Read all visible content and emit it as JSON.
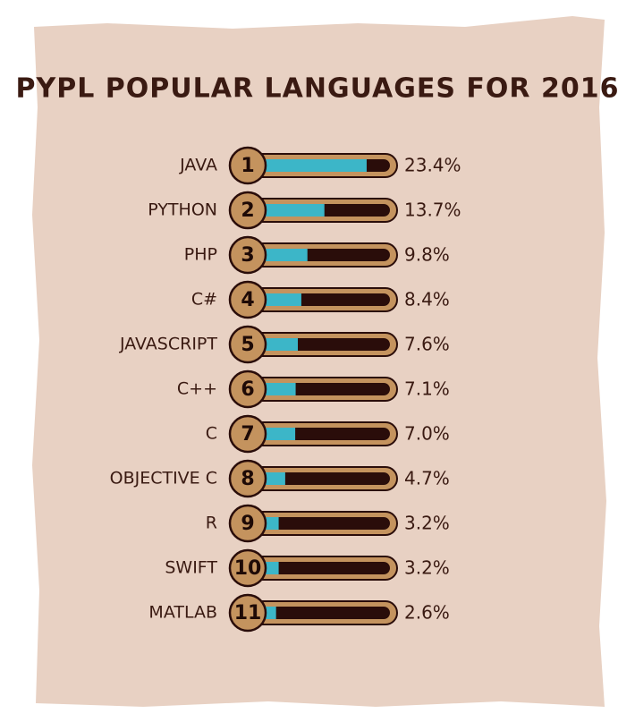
{
  "chart_data": {
    "type": "bar",
    "title": "PYPL POPULAR LANGUAGES FOR 2016",
    "categories": [
      "JAVA",
      "PYTHON",
      "PHP",
      "C#",
      "JAVASCRIPT",
      "C++",
      "C",
      "OBJECTIVE C",
      "R",
      "SWIFT",
      "MATLAB"
    ],
    "ranks": [
      1,
      2,
      3,
      4,
      5,
      6,
      7,
      8,
      9,
      10,
      11
    ],
    "values": [
      23.4,
      13.7,
      9.8,
      8.4,
      7.6,
      7.1,
      7.0,
      4.7,
      3.2,
      3.2,
      2.6
    ],
    "value_labels": [
      "23.4%",
      "13.7%",
      "9.8%",
      "8.4%",
      "7.6%",
      "7.1%",
      "7.0%",
      "4.7%",
      "3.2%",
      "3.2%",
      "2.6%"
    ],
    "color": "#3cb6c8"
  }
}
